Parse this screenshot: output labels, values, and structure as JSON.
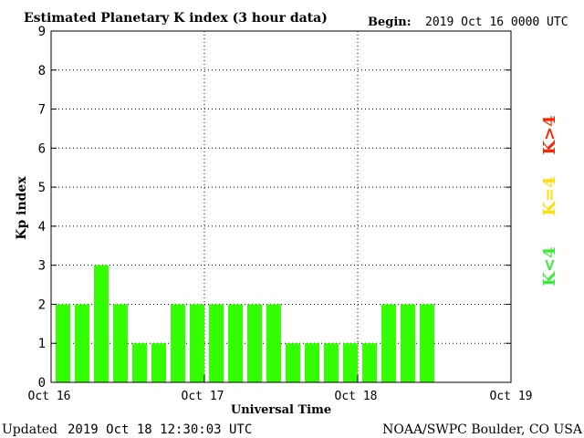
{
  "header": {
    "title": "Estimated Planetary K index (3 hour data)",
    "begin_label": "Begin:",
    "begin_value": "2019 Oct 16 0000 UTC"
  },
  "footer": {
    "updated_label": "Updated",
    "updated_value": "2019 Oct 18 12:30:03 UTC",
    "source": "NOAA/SWPC Boulder, CO USA"
  },
  "legend": [
    {
      "label": "K<4",
      "color": "#33ee33"
    },
    {
      "label": "K=4",
      "color": "#ffdd00"
    },
    {
      "label": "K>4",
      "color": "#ff2200"
    }
  ],
  "chart_data": {
    "type": "bar",
    "title": "Estimated Planetary K index (3 hour data)",
    "xlabel": "Universal Time",
    "ylabel": "Kp index",
    "ylim": [
      0,
      9
    ],
    "yticks": [
      0,
      1,
      2,
      3,
      4,
      5,
      6,
      7,
      8,
      9
    ],
    "x_tick_labels": [
      "Oct 16",
      "Oct 17",
      "Oct 18",
      "Oct 19"
    ],
    "slots_total": 24,
    "values": [
      2,
      2,
      3,
      2,
      1,
      1,
      2,
      2,
      2,
      2,
      2,
      2,
      1,
      1,
      1,
      1,
      1,
      2,
      2,
      2
    ],
    "bar_color": "#33ff00",
    "grid": "dotted, at Kp 1-8 and at day boundaries"
  }
}
